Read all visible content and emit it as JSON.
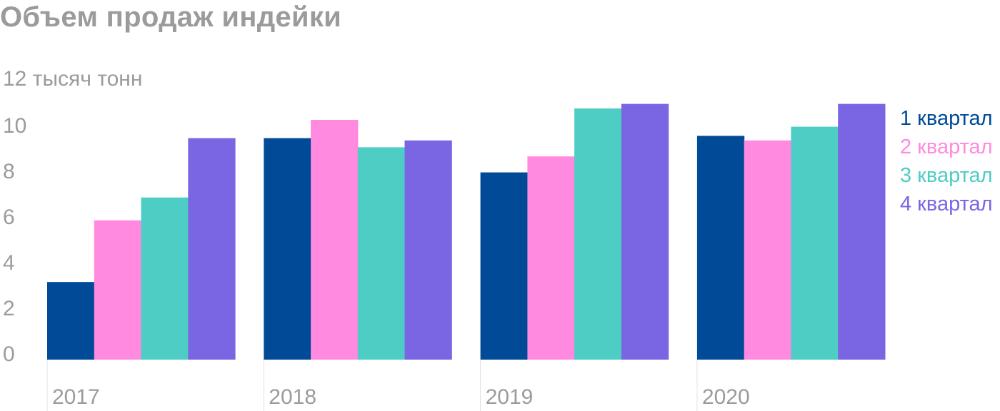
{
  "title": "Объем продаж индейки",
  "chart_data": {
    "type": "bar",
    "title": "Объем продаж индейки",
    "ylabel": "тысяч тонн",
    "top_tick_label": "12 тысяч тонн",
    "y_ticks": [
      "0",
      "2",
      "4",
      "6",
      "8",
      "10"
    ],
    "ylim": [
      0,
      12
    ],
    "grid": false,
    "legend_position": "right",
    "categories": [
      "2017",
      "2018",
      "2019",
      "2020"
    ],
    "series": [
      {
        "name": "1 квартал",
        "color": "#004a98",
        "values": [
          3.4,
          9.7,
          8.2,
          9.8
        ]
      },
      {
        "name": "2 квартал",
        "color": "#ff8ae0",
        "values": [
          6.1,
          10.5,
          8.9,
          9.6
        ]
      },
      {
        "name": "3 квартал",
        "color": "#4ecdc4",
        "values": [
          7.1,
          9.3,
          11.0,
          10.2
        ]
      },
      {
        "name": "4 квартал",
        "color": "#7a66e3",
        "values": [
          9.7,
          9.6,
          11.2,
          11.2
        ]
      }
    ]
  }
}
